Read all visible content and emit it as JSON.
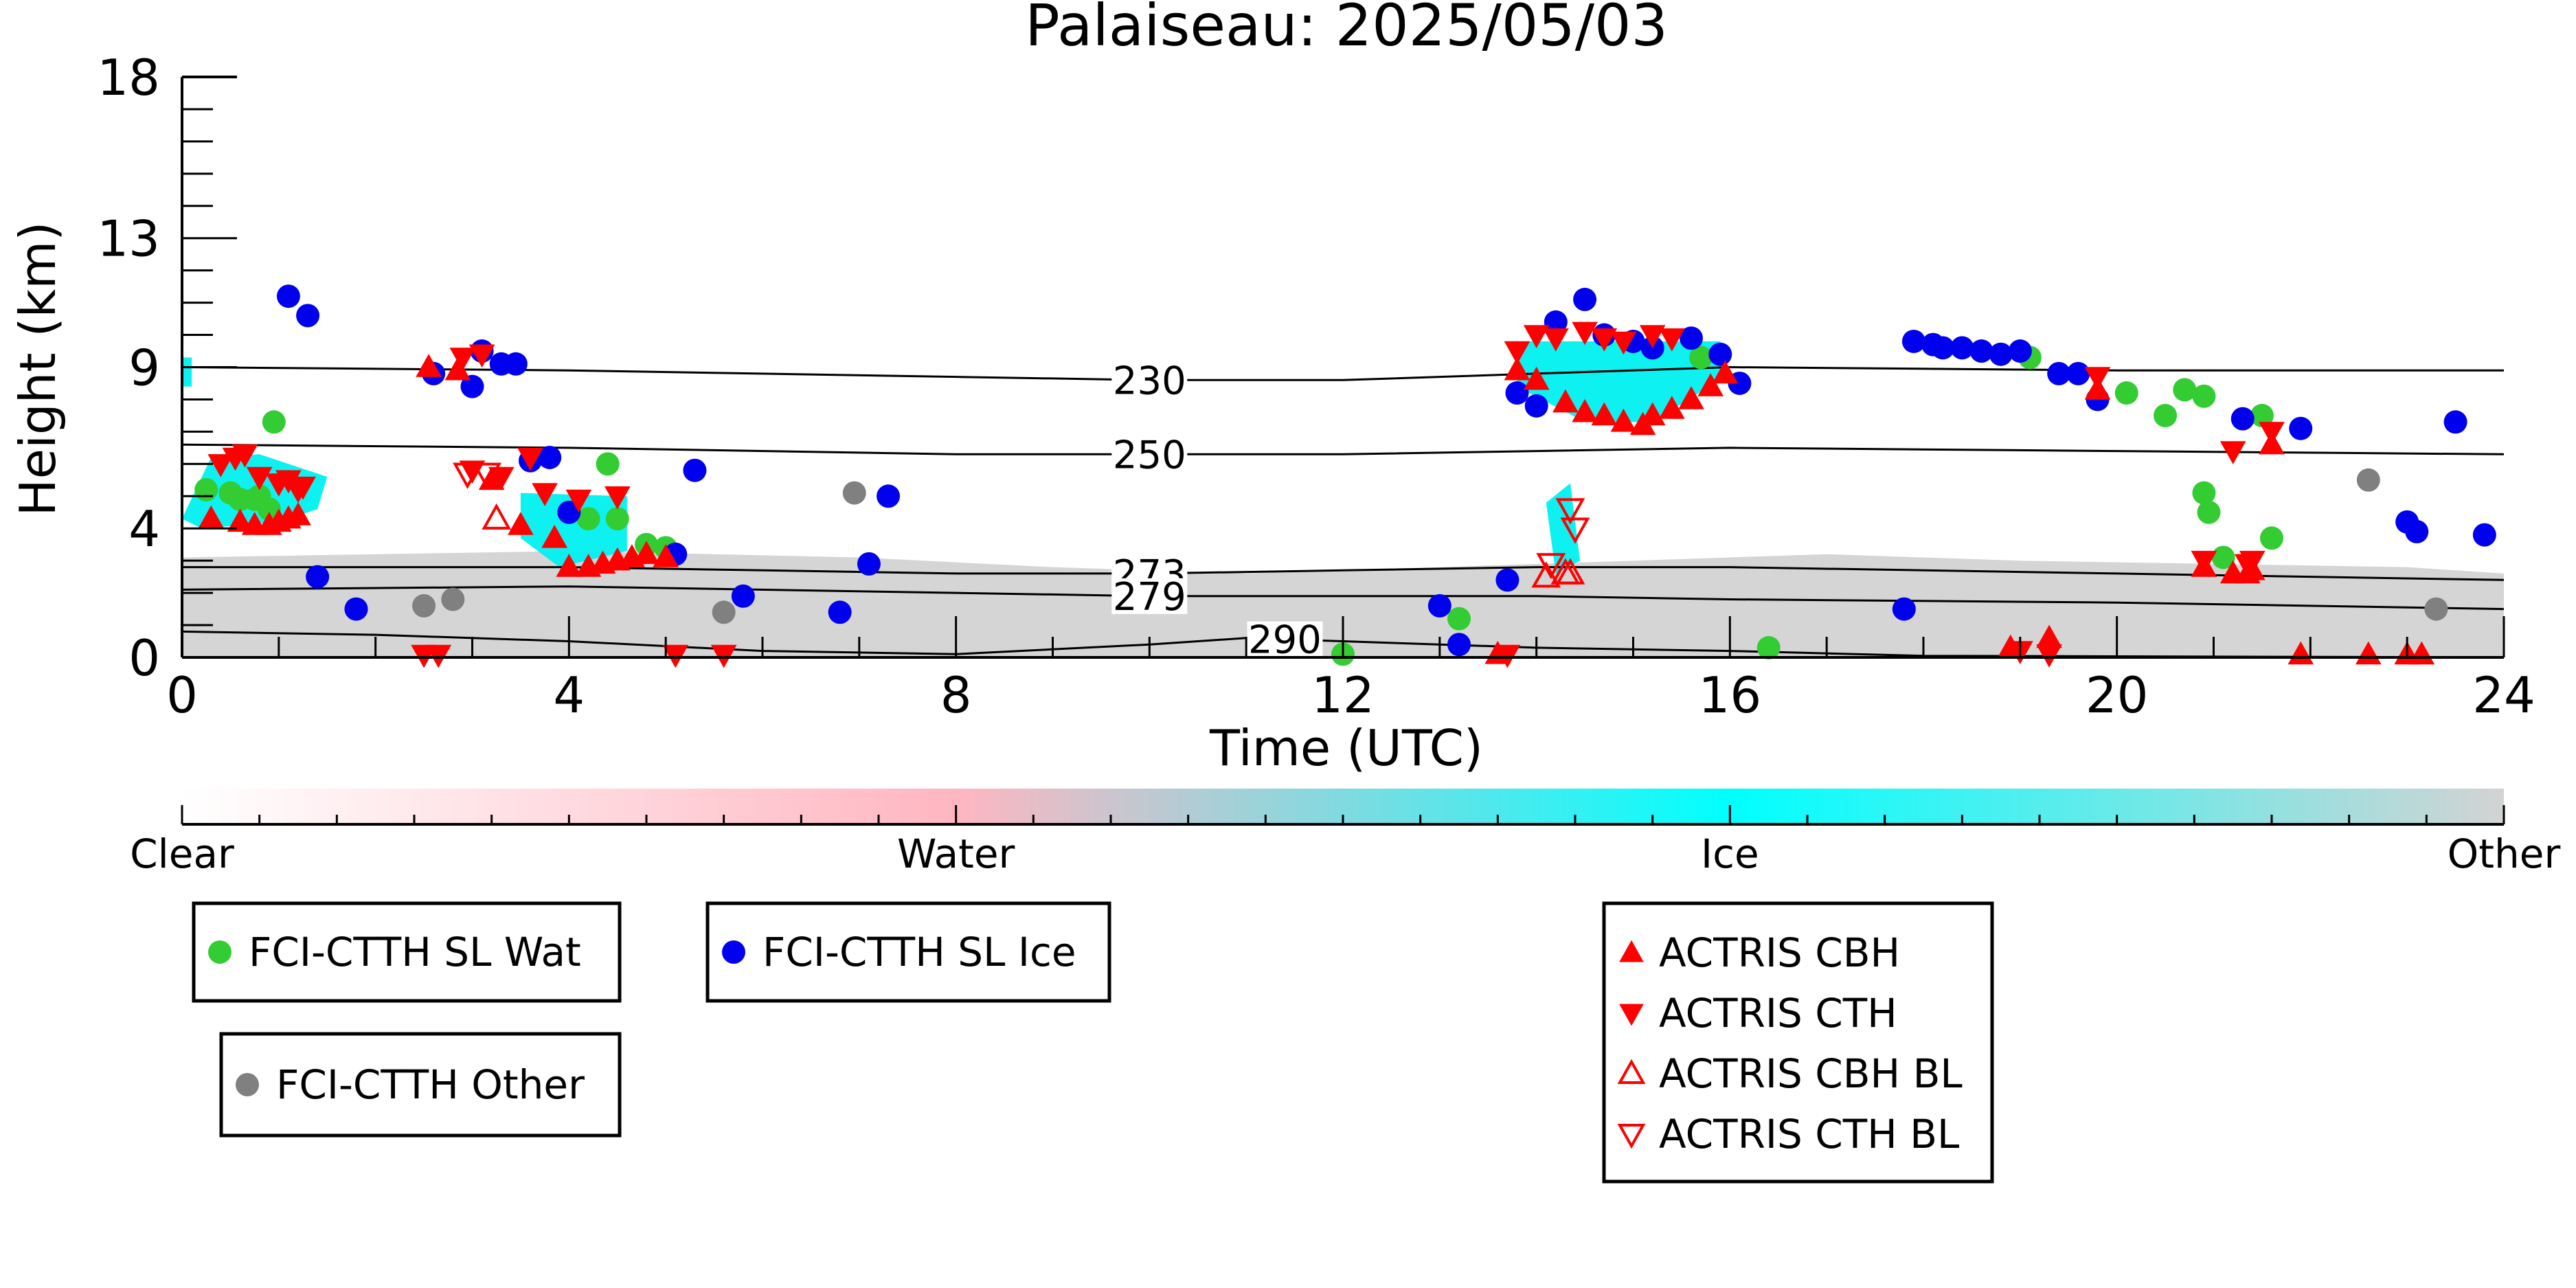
{
  "chart_data": {
    "type": "scatter",
    "title": "Palaiseau: 2025/05/03",
    "xlabel": "Time (UTC)",
    "ylabel": "Height (km)",
    "xlim": [
      0,
      24
    ],
    "ylim": [
      0,
      18
    ],
    "xticks": [
      0,
      4,
      8,
      12,
      16,
      20,
      24
    ],
    "yticks": [
      0,
      4,
      9,
      13,
      18
    ],
    "grid": false,
    "colors": {
      "water_dot": "#33cc33",
      "ice_dot": "#0000ee",
      "other_dot": "#808080",
      "actris": "#ff0000",
      "ice_fill": "#00f0f0",
      "other_fill": "#d3d3d3",
      "water_fill": "#ffb6c1"
    },
    "colorbar": {
      "labels": [
        "Clear",
        "Water",
        "Ice",
        "Other"
      ],
      "stops": [
        "#ffffff",
        "#ffb6c1",
        "#00ffff",
        "#d3d3d3"
      ]
    },
    "isotherms": [
      {
        "label": "230",
        "label_x": 10.0,
        "points": [
          [
            0,
            9.0
          ],
          [
            4,
            8.9
          ],
          [
            8,
            8.7
          ],
          [
            10,
            8.6
          ],
          [
            12,
            8.6
          ],
          [
            14,
            8.8
          ],
          [
            16,
            9.0
          ],
          [
            20,
            8.9
          ],
          [
            24,
            8.9
          ]
        ]
      },
      {
        "label": "250",
        "label_x": 10.0,
        "points": [
          [
            0,
            6.6
          ],
          [
            4,
            6.5
          ],
          [
            8,
            6.3
          ],
          [
            10,
            6.3
          ],
          [
            12,
            6.3
          ],
          [
            14,
            6.4
          ],
          [
            16,
            6.5
          ],
          [
            20,
            6.4
          ],
          [
            24,
            6.3
          ]
        ]
      },
      {
        "label": "273",
        "label_x": 10.0,
        "points": [
          [
            0,
            2.8
          ],
          [
            4,
            2.8
          ],
          [
            8,
            2.6
          ],
          [
            10,
            2.6
          ],
          [
            12,
            2.7
          ],
          [
            14,
            2.8
          ],
          [
            16,
            2.8
          ],
          [
            20,
            2.6
          ],
          [
            24,
            2.4
          ]
        ]
      },
      {
        "label": "279",
        "label_x": 10.0,
        "points": [
          [
            0,
            2.1
          ],
          [
            4,
            2.2
          ],
          [
            8,
            2.0
          ],
          [
            10,
            1.9
          ],
          [
            12,
            1.9
          ],
          [
            14,
            1.9
          ],
          [
            16,
            1.8
          ],
          [
            20,
            1.7
          ],
          [
            24,
            1.5
          ]
        ]
      },
      {
        "label": "290",
        "label_x": 11.4,
        "points": [
          [
            0,
            0.8
          ],
          [
            2,
            0.7
          ],
          [
            4,
            0.5
          ],
          [
            6,
            0.2
          ],
          [
            8,
            0.1
          ],
          [
            10,
            0.4
          ],
          [
            11,
            0.6
          ],
          [
            12,
            0.5
          ],
          [
            14,
            0.3
          ],
          [
            16,
            0.2
          ],
          [
            18,
            0.05
          ],
          [
            24,
            0.0
          ]
        ]
      }
    ],
    "series": [
      {
        "name": "FCI-CTTH SL Wat",
        "marker": "circle",
        "points": [
          [
            0.25,
            5.2
          ],
          [
            0.5,
            5.1
          ],
          [
            0.6,
            4.9
          ],
          [
            0.75,
            4.9
          ],
          [
            0.8,
            5.0
          ],
          [
            0.9,
            4.6
          ],
          [
            0.95,
            7.3
          ],
          [
            4.4,
            6.0
          ],
          [
            4.2,
            4.3
          ],
          [
            4.5,
            4.3
          ],
          [
            4.8,
            3.5
          ],
          [
            5.0,
            3.4
          ],
          [
            12.0,
            0.1
          ],
          [
            13.2,
            1.2
          ],
          [
            15.7,
            9.3
          ],
          [
            16.4,
            0.3
          ],
          [
            19.1,
            9.3
          ],
          [
            20.1,
            8.2
          ],
          [
            20.5,
            7.5
          ],
          [
            20.7,
            8.3
          ],
          [
            20.9,
            8.1
          ],
          [
            20.9,
            5.1
          ],
          [
            20.95,
            4.5
          ],
          [
            21.1,
            3.1
          ],
          [
            21.5,
            7.5
          ],
          [
            21.6,
            3.7
          ]
        ]
      },
      {
        "name": "FCI-CTTH SL Ice",
        "marker": "circle",
        "points": [
          [
            1.1,
            11.2
          ],
          [
            1.3,
            10.6
          ],
          [
            1.4,
            2.5
          ],
          [
            1.8,
            1.5
          ],
          [
            2.6,
            8.8
          ],
          [
            3.0,
            8.4
          ],
          [
            3.1,
            9.5
          ],
          [
            3.3,
            9.1
          ],
          [
            3.45,
            9.1
          ],
          [
            3.6,
            6.1
          ],
          [
            3.8,
            6.2
          ],
          [
            4.0,
            4.5
          ],
          [
            5.1,
            3.2
          ],
          [
            5.3,
            5.8
          ],
          [
            5.8,
            1.9
          ],
          [
            6.8,
            1.4
          ],
          [
            7.1,
            2.9
          ],
          [
            7.3,
            5.0
          ],
          [
            13.0,
            1.6
          ],
          [
            13.2,
            0.4
          ],
          [
            13.7,
            2.4
          ],
          [
            13.8,
            8.2
          ],
          [
            14.0,
            7.8
          ],
          [
            14.2,
            10.4
          ],
          [
            14.5,
            11.1
          ],
          [
            14.7,
            10.0
          ],
          [
            15.0,
            9.8
          ],
          [
            15.2,
            9.6
          ],
          [
            15.6,
            9.9
          ],
          [
            15.9,
            9.4
          ],
          [
            16.1,
            8.5
          ],
          [
            17.8,
            1.5
          ],
          [
            17.9,
            9.8
          ],
          [
            18.1,
            9.7
          ],
          [
            18.2,
            9.6
          ],
          [
            18.4,
            9.6
          ],
          [
            18.6,
            9.5
          ],
          [
            18.8,
            9.4
          ],
          [
            19.0,
            9.5
          ],
          [
            19.4,
            8.8
          ],
          [
            19.6,
            8.8
          ],
          [
            19.8,
            8.0
          ],
          [
            21.3,
            7.4
          ],
          [
            21.9,
            7.1
          ],
          [
            23.0,
            4.2
          ],
          [
            23.1,
            3.9
          ],
          [
            23.5,
            7.3
          ],
          [
            23.8,
            3.8
          ]
        ]
      },
      {
        "name": "FCI-CTTH Other",
        "marker": "circle",
        "points": [
          [
            2.5,
            1.6
          ],
          [
            2.8,
            1.8
          ],
          [
            5.6,
            1.4
          ],
          [
            6.95,
            5.1
          ],
          [
            22.6,
            5.5
          ],
          [
            23.3,
            1.5
          ]
        ]
      },
      {
        "name": "ACTRIS CBH",
        "marker": "triangle-up",
        "points": [
          [
            0.3,
            4.3
          ],
          [
            0.6,
            4.2
          ],
          [
            0.75,
            4.1
          ],
          [
            0.9,
            4.1
          ],
          [
            1.0,
            4.2
          ],
          [
            1.1,
            4.3
          ],
          [
            1.2,
            4.4
          ],
          [
            2.55,
            9.0
          ],
          [
            2.85,
            8.9
          ],
          [
            3.2,
            5.5
          ],
          [
            3.5,
            4.1
          ],
          [
            3.85,
            3.7
          ],
          [
            4.0,
            2.8
          ],
          [
            4.2,
            2.8
          ],
          [
            4.35,
            2.9
          ],
          [
            4.5,
            3.0
          ],
          [
            4.65,
            3.1
          ],
          [
            4.8,
            3.2
          ],
          [
            5.0,
            3.1
          ],
          [
            13.6,
            0.1
          ],
          [
            13.8,
            8.9
          ],
          [
            14.0,
            8.6
          ],
          [
            14.3,
            7.9
          ],
          [
            14.5,
            7.6
          ],
          [
            14.7,
            7.5
          ],
          [
            14.9,
            7.3
          ],
          [
            15.1,
            7.2
          ],
          [
            15.2,
            7.5
          ],
          [
            15.4,
            7.7
          ],
          [
            15.6,
            8.0
          ],
          [
            15.8,
            8.4
          ],
          [
            15.95,
            8.8
          ],
          [
            18.9,
            0.3
          ],
          [
            19.3,
            0.6
          ],
          [
            19.8,
            8.3
          ],
          [
            20.9,
            2.8
          ],
          [
            21.2,
            2.6
          ],
          [
            21.35,
            2.6
          ],
          [
            21.4,
            2.7
          ],
          [
            21.6,
            6.6
          ],
          [
            21.9,
            0.0
          ],
          [
            22.6,
            0.0
          ],
          [
            23.0,
            0.0
          ],
          [
            23.15,
            0.0
          ]
        ]
      },
      {
        "name": "ACTRIS CTH",
        "marker": "triangle-down",
        "points": [
          [
            0.4,
            6.0
          ],
          [
            0.55,
            6.2
          ],
          [
            0.65,
            6.3
          ],
          [
            0.8,
            5.6
          ],
          [
            1.0,
            5.4
          ],
          [
            1.1,
            5.5
          ],
          [
            1.2,
            5.2
          ],
          [
            1.25,
            5.3
          ],
          [
            2.5,
            0.0
          ],
          [
            2.65,
            0.0
          ],
          [
            2.9,
            9.3
          ],
          [
            3.1,
            9.4
          ],
          [
            3.0,
            5.8
          ],
          [
            3.3,
            5.6
          ],
          [
            3.6,
            6.2
          ],
          [
            3.75,
            5.1
          ],
          [
            4.1,
            4.9
          ],
          [
            4.5,
            5.0
          ],
          [
            5.1,
            0.0
          ],
          [
            5.6,
            0.0
          ],
          [
            13.7,
            0.0
          ],
          [
            13.8,
            9.5
          ],
          [
            14.0,
            10.0
          ],
          [
            14.2,
            9.9
          ],
          [
            14.5,
            10.1
          ],
          [
            14.7,
            9.9
          ],
          [
            14.9,
            9.8
          ],
          [
            15.2,
            10.0
          ],
          [
            15.4,
            9.9
          ],
          [
            19.0,
            0.2
          ],
          [
            19.3,
            0.1
          ],
          [
            19.8,
            8.7
          ],
          [
            20.9,
            3.0
          ],
          [
            21.2,
            6.4
          ],
          [
            21.35,
            2.9
          ],
          [
            21.4,
            3.0
          ],
          [
            21.6,
            7.0
          ]
        ]
      },
      {
        "name": "ACTRIS CBH BL",
        "marker": "triangle-up-open",
        "points": [
          [
            3.25,
            4.3
          ],
          [
            14.1,
            2.5
          ],
          [
            14.3,
            2.6
          ],
          [
            14.35,
            2.6
          ]
        ]
      },
      {
        "name": "ACTRIS CTH BL",
        "marker": "triangle-down-open",
        "points": [
          [
            2.95,
            5.7
          ],
          [
            3.15,
            5.7
          ],
          [
            14.15,
            2.9
          ],
          [
            14.35,
            4.6
          ],
          [
            14.4,
            4.0
          ]
        ]
      }
    ],
    "regions": {
      "ice": [
        [
          [
            0.0,
            4.3
          ],
          [
            0.3,
            6.2
          ],
          [
            0.8,
            6.3
          ],
          [
            1.5,
            5.6
          ],
          [
            1.4,
            4.6
          ],
          [
            1.0,
            4.2
          ],
          [
            0.2,
            4.0
          ]
        ],
        [
          [
            3.5,
            5.1
          ],
          [
            4.6,
            5.0
          ],
          [
            4.6,
            3.3
          ],
          [
            3.9,
            2.8
          ],
          [
            3.5,
            3.7
          ]
        ],
        [
          [
            13.8,
            9.8
          ],
          [
            15.9,
            9.8
          ],
          [
            16.0,
            8.8
          ],
          [
            15.2,
            7.3
          ],
          [
            14.5,
            7.3
          ],
          [
            13.8,
            8.4
          ]
        ],
        [
          [
            14.1,
            4.8
          ],
          [
            14.35,
            5.4
          ],
          [
            14.45,
            3.0
          ],
          [
            14.2,
            2.6
          ]
        ],
        [
          [
            0.0,
            9.3
          ],
          [
            0.1,
            9.3
          ],
          [
            0.1,
            8.4
          ],
          [
            0.0,
            8.4
          ]
        ]
      ],
      "other": [
        [
          [
            0.0,
            0.0
          ],
          [
            0.0,
            3.1
          ],
          [
            2.0,
            3.2
          ],
          [
            4.0,
            3.3
          ],
          [
            7.0,
            3.1
          ],
          [
            9.0,
            2.8
          ],
          [
            11.0,
            2.6
          ],
          [
            13.0,
            2.8
          ],
          [
            15.0,
            3.0
          ],
          [
            17.0,
            3.2
          ],
          [
            19.0,
            3.0
          ],
          [
            21.0,
            2.9
          ],
          [
            23.0,
            2.8
          ],
          [
            24.0,
            2.6
          ],
          [
            24.0,
            0.0
          ]
        ]
      ]
    },
    "legend": [
      {
        "label": "FCI-CTTH SL Wat",
        "marker": "circle",
        "color": "#33cc33"
      },
      {
        "label": "FCI-CTTH SL Ice",
        "marker": "circle",
        "color": "#0000ee"
      },
      {
        "label": "FCI-CTTH Other",
        "marker": "circle",
        "color": "#808080"
      },
      {
        "label": "ACTRIS CBH",
        "marker": "triangle-up",
        "color": "#ff0000"
      },
      {
        "label": "ACTRIS CTH",
        "marker": "triangle-down",
        "color": "#ff0000"
      },
      {
        "label": "ACTRIS CBH BL",
        "marker": "triangle-up-open",
        "color": "#ff0000"
      },
      {
        "label": "ACTRIS CTH BL",
        "marker": "triangle-down-open",
        "color": "#ff0000"
      }
    ]
  }
}
